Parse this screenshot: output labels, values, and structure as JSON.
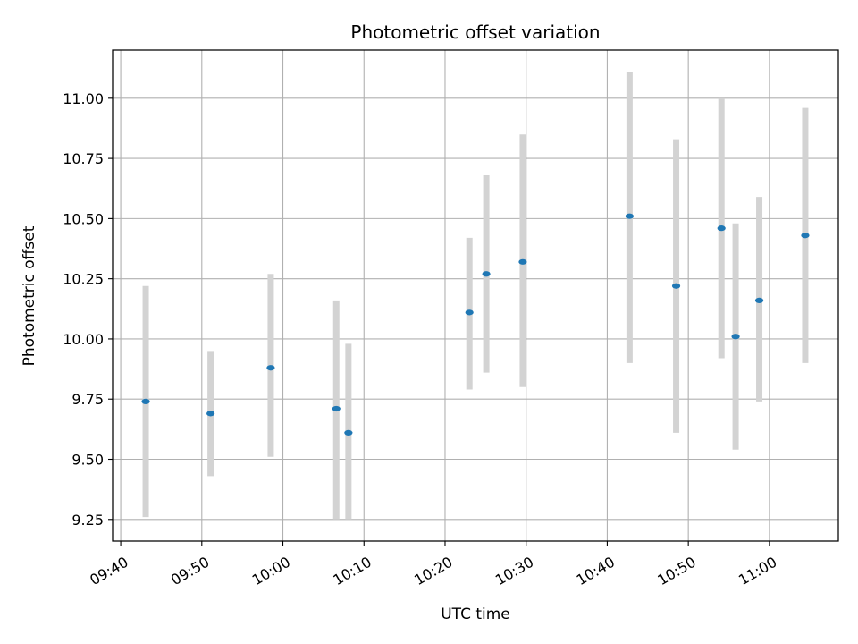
{
  "chart_data": {
    "type": "scatter",
    "title": "Photometric offset variation",
    "xlabel": "UTC time",
    "ylabel": "Photometric offset",
    "x_axis_type": "time",
    "xlim": [
      "09:39:00",
      "11:08:30"
    ],
    "ylim": [
      9.16,
      11.2
    ],
    "x_ticks": [
      "09:40",
      "09:50",
      "10:00",
      "10:10",
      "10:20",
      "10:30",
      "10:40",
      "10:50",
      "11:00"
    ],
    "y_ticks": [
      "9.25",
      "9.50",
      "9.75",
      "10.00",
      "10.25",
      "10.50",
      "10.75",
      "11.00"
    ],
    "grid": true,
    "colors": {
      "point": "#1f77b4",
      "errorbar": "#d3d3d3",
      "grid": "#b0b0b0"
    },
    "series": [
      {
        "points": [
          {
            "x": "09:43:05",
            "y": 9.74,
            "ylow": 9.26,
            "yhigh": 10.22
          },
          {
            "x": "09:51:05",
            "y": 9.69,
            "ylow": 9.43,
            "yhigh": 9.95
          },
          {
            "x": "09:58:30",
            "y": 9.88,
            "ylow": 9.51,
            "yhigh": 10.27
          },
          {
            "x": "10:06:35",
            "y": 9.71,
            "ylow": 9.25,
            "yhigh": 10.16
          },
          {
            "x": "10:08:05",
            "y": 9.61,
            "ylow": 9.25,
            "yhigh": 9.98
          },
          {
            "x": "10:23:00",
            "y": 10.11,
            "ylow": 9.79,
            "yhigh": 10.42
          },
          {
            "x": "10:25:05",
            "y": 10.27,
            "ylow": 9.86,
            "yhigh": 10.68
          },
          {
            "x": "10:29:35",
            "y": 10.32,
            "ylow": 9.8,
            "yhigh": 10.85
          },
          {
            "x": "10:42:45",
            "y": 10.51,
            "ylow": 9.9,
            "yhigh": 11.11
          },
          {
            "x": "10:48:30",
            "y": 10.22,
            "ylow": 9.61,
            "yhigh": 10.83
          },
          {
            "x": "10:54:05",
            "y": 10.46,
            "ylow": 9.92,
            "yhigh": 11.0
          },
          {
            "x": "10:55:50",
            "y": 10.01,
            "ylow": 9.54,
            "yhigh": 10.48
          },
          {
            "x": "10:58:45",
            "y": 10.16,
            "ylow": 9.74,
            "yhigh": 10.59
          },
          {
            "x": "11:04:25",
            "y": 10.43,
            "ylow": 9.9,
            "yhigh": 10.96
          }
        ]
      }
    ]
  }
}
